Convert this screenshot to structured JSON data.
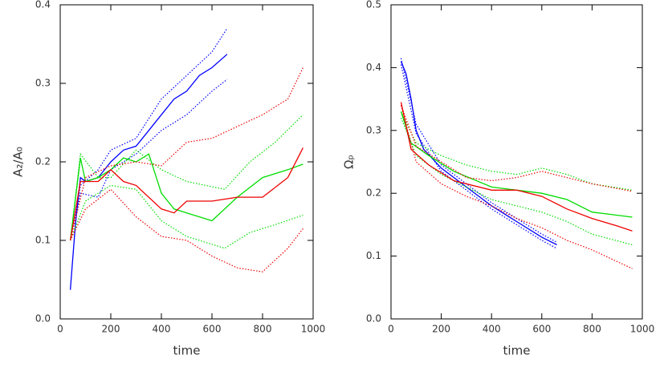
{
  "chart_data": [
    {
      "type": "line",
      "xlabel": "time",
      "ylabel": "A₂/A₀",
      "xlim": [
        0,
        1000
      ],
      "xticks": [
        0,
        200,
        400,
        600,
        800,
        1000
      ],
      "ylim": [
        0,
        0.4
      ],
      "yticks": [
        {
          "value": 0,
          "label": "0.0"
        },
        0.1,
        0.2,
        0.3,
        0.4
      ],
      "series": [
        {
          "color": "#0000ff",
          "linestyle": "solid",
          "x": [
            40,
            60,
            80,
            100,
            150,
            200,
            250,
            300,
            350,
            400,
            450,
            500,
            550,
            600,
            660
          ],
          "values": [
            0.037,
            0.12,
            0.18,
            0.175,
            0.18,
            0.2,
            0.215,
            0.22,
            0.24,
            0.26,
            0.28,
            0.29,
            0.31,
            0.32,
            0.337
          ]
        },
        {
          "color": "#0000ff",
          "linestyle": "dotted",
          "x": [
            40,
            80,
            150,
            200,
            300,
            400,
            500,
            600,
            660
          ],
          "values": [
            0.1,
            0.17,
            0.19,
            0.215,
            0.23,
            0.28,
            0.31,
            0.34,
            0.37
          ]
        },
        {
          "color": "#0000ff",
          "linestyle": "dotted",
          "x": [
            40,
            80,
            150,
            200,
            300,
            400,
            500,
            600,
            660
          ],
          "values": [
            0.1,
            0.16,
            0.155,
            0.19,
            0.21,
            0.24,
            0.26,
            0.29,
            0.305
          ]
        },
        {
          "color": "#00dd00",
          "linestyle": "solid",
          "x": [
            40,
            80,
            100,
            150,
            200,
            250,
            300,
            350,
            400,
            450,
            500,
            600,
            700,
            800,
            900,
            960
          ],
          "values": [
            0.1,
            0.205,
            0.175,
            0.18,
            0.19,
            0.205,
            0.2,
            0.21,
            0.16,
            0.14,
            0.135,
            0.125,
            0.155,
            0.18,
            0.19,
            0.197
          ]
        },
        {
          "color": "#00dd00",
          "linestyle": "dotted",
          "x": [
            40,
            80,
            150,
            200,
            300,
            400,
            500,
            650,
            750,
            850,
            960
          ],
          "values": [
            0.1,
            0.21,
            0.18,
            0.18,
            0.215,
            0.19,
            0.175,
            0.165,
            0.2,
            0.225,
            0.26
          ]
        },
        {
          "color": "#00dd00",
          "linestyle": "dotted",
          "x": [
            40,
            100,
            200,
            300,
            400,
            500,
            650,
            750,
            850,
            960
          ],
          "values": [
            0.1,
            0.15,
            0.17,
            0.165,
            0.125,
            0.105,
            0.09,
            0.11,
            0.12,
            0.132
          ]
        },
        {
          "color": "#ee0000",
          "linestyle": "solid",
          "x": [
            40,
            80,
            150,
            200,
            250,
            300,
            400,
            450,
            500,
            600,
            700,
            800,
            900,
            960
          ],
          "values": [
            0.1,
            0.175,
            0.175,
            0.19,
            0.175,
            0.17,
            0.14,
            0.135,
            0.15,
            0.15,
            0.155,
            0.155,
            0.18,
            0.218
          ]
        },
        {
          "color": "#ee0000",
          "linestyle": "dotted",
          "x": [
            40,
            100,
            200,
            300,
            400,
            500,
            600,
            700,
            800,
            900,
            960
          ],
          "values": [
            0.1,
            0.18,
            0.195,
            0.2,
            0.195,
            0.225,
            0.23,
            0.245,
            0.26,
            0.28,
            0.32
          ]
        },
        {
          "color": "#ee0000",
          "linestyle": "dotted",
          "x": [
            40,
            100,
            200,
            300,
            400,
            500,
            600,
            700,
            800,
            900,
            960
          ],
          "values": [
            0.1,
            0.14,
            0.165,
            0.13,
            0.105,
            0.1,
            0.08,
            0.065,
            0.06,
            0.09,
            0.115
          ]
        }
      ]
    },
    {
      "type": "line",
      "xlabel": "time",
      "ylabel": "Ωₚ",
      "xlim": [
        0,
        1000
      ],
      "xticks": [
        0,
        200,
        400,
        600,
        800,
        1000
      ],
      "ylim": [
        0,
        0.5
      ],
      "yticks": [
        {
          "value": 0,
          "label": "0.0"
        },
        0.1,
        0.2,
        0.3,
        0.4,
        0.5
      ],
      "series": [
        {
          "color": "#0000ff",
          "linestyle": "solid",
          "x": [
            40,
            60,
            80,
            100,
            130,
            200,
            300,
            400,
            500,
            600,
            660
          ],
          "values": [
            0.41,
            0.39,
            0.35,
            0.3,
            0.27,
            0.24,
            0.21,
            0.18,
            0.155,
            0.13,
            0.118
          ]
        },
        {
          "color": "#0000ff",
          "linestyle": "dotted",
          "x": [
            40,
            100,
            200,
            300,
            400,
            500,
            600,
            660
          ],
          "values": [
            0.415,
            0.31,
            0.245,
            0.215,
            0.185,
            0.16,
            0.135,
            0.122
          ]
        },
        {
          "color": "#0000ff",
          "linestyle": "dotted",
          "x": [
            40,
            100,
            200,
            300,
            400,
            500,
            600,
            660
          ],
          "values": [
            0.405,
            0.295,
            0.235,
            0.205,
            0.175,
            0.15,
            0.125,
            0.112
          ]
        },
        {
          "color": "#00dd00",
          "linestyle": "solid",
          "x": [
            40,
            80,
            150,
            250,
            400,
            500,
            600,
            700,
            800,
            900,
            960
          ],
          "values": [
            0.33,
            0.28,
            0.26,
            0.235,
            0.21,
            0.205,
            0.2,
            0.19,
            0.17,
            0.165,
            0.162
          ]
        },
        {
          "color": "#00dd00",
          "linestyle": "dotted",
          "x": [
            40,
            100,
            200,
            300,
            400,
            500,
            600,
            700,
            800,
            960
          ],
          "values": [
            0.33,
            0.28,
            0.26,
            0.245,
            0.235,
            0.23,
            0.24,
            0.23,
            0.215,
            0.205
          ]
        },
        {
          "color": "#00dd00",
          "linestyle": "dotted",
          "x": [
            40,
            100,
            200,
            300,
            400,
            500,
            600,
            700,
            800,
            960
          ],
          "values": [
            0.32,
            0.26,
            0.23,
            0.21,
            0.19,
            0.18,
            0.17,
            0.155,
            0.135,
            0.118
          ]
        },
        {
          "color": "#ee0000",
          "linestyle": "solid",
          "x": [
            40,
            80,
            150,
            250,
            400,
            500,
            600,
            700,
            800,
            900,
            960
          ],
          "values": [
            0.345,
            0.27,
            0.245,
            0.22,
            0.205,
            0.205,
            0.195,
            0.175,
            0.16,
            0.148,
            0.14
          ]
        },
        {
          "color": "#ee0000",
          "linestyle": "dotted",
          "x": [
            40,
            100,
            200,
            300,
            400,
            500,
            600,
            700,
            800,
            960
          ],
          "values": [
            0.34,
            0.275,
            0.25,
            0.225,
            0.22,
            0.225,
            0.235,
            0.225,
            0.215,
            0.203
          ]
        },
        {
          "color": "#ee0000",
          "linestyle": "dotted",
          "x": [
            40,
            100,
            200,
            300,
            400,
            500,
            600,
            700,
            800,
            960
          ],
          "values": [
            0.34,
            0.25,
            0.215,
            0.195,
            0.18,
            0.16,
            0.145,
            0.125,
            0.11,
            0.08
          ]
        }
      ]
    }
  ]
}
